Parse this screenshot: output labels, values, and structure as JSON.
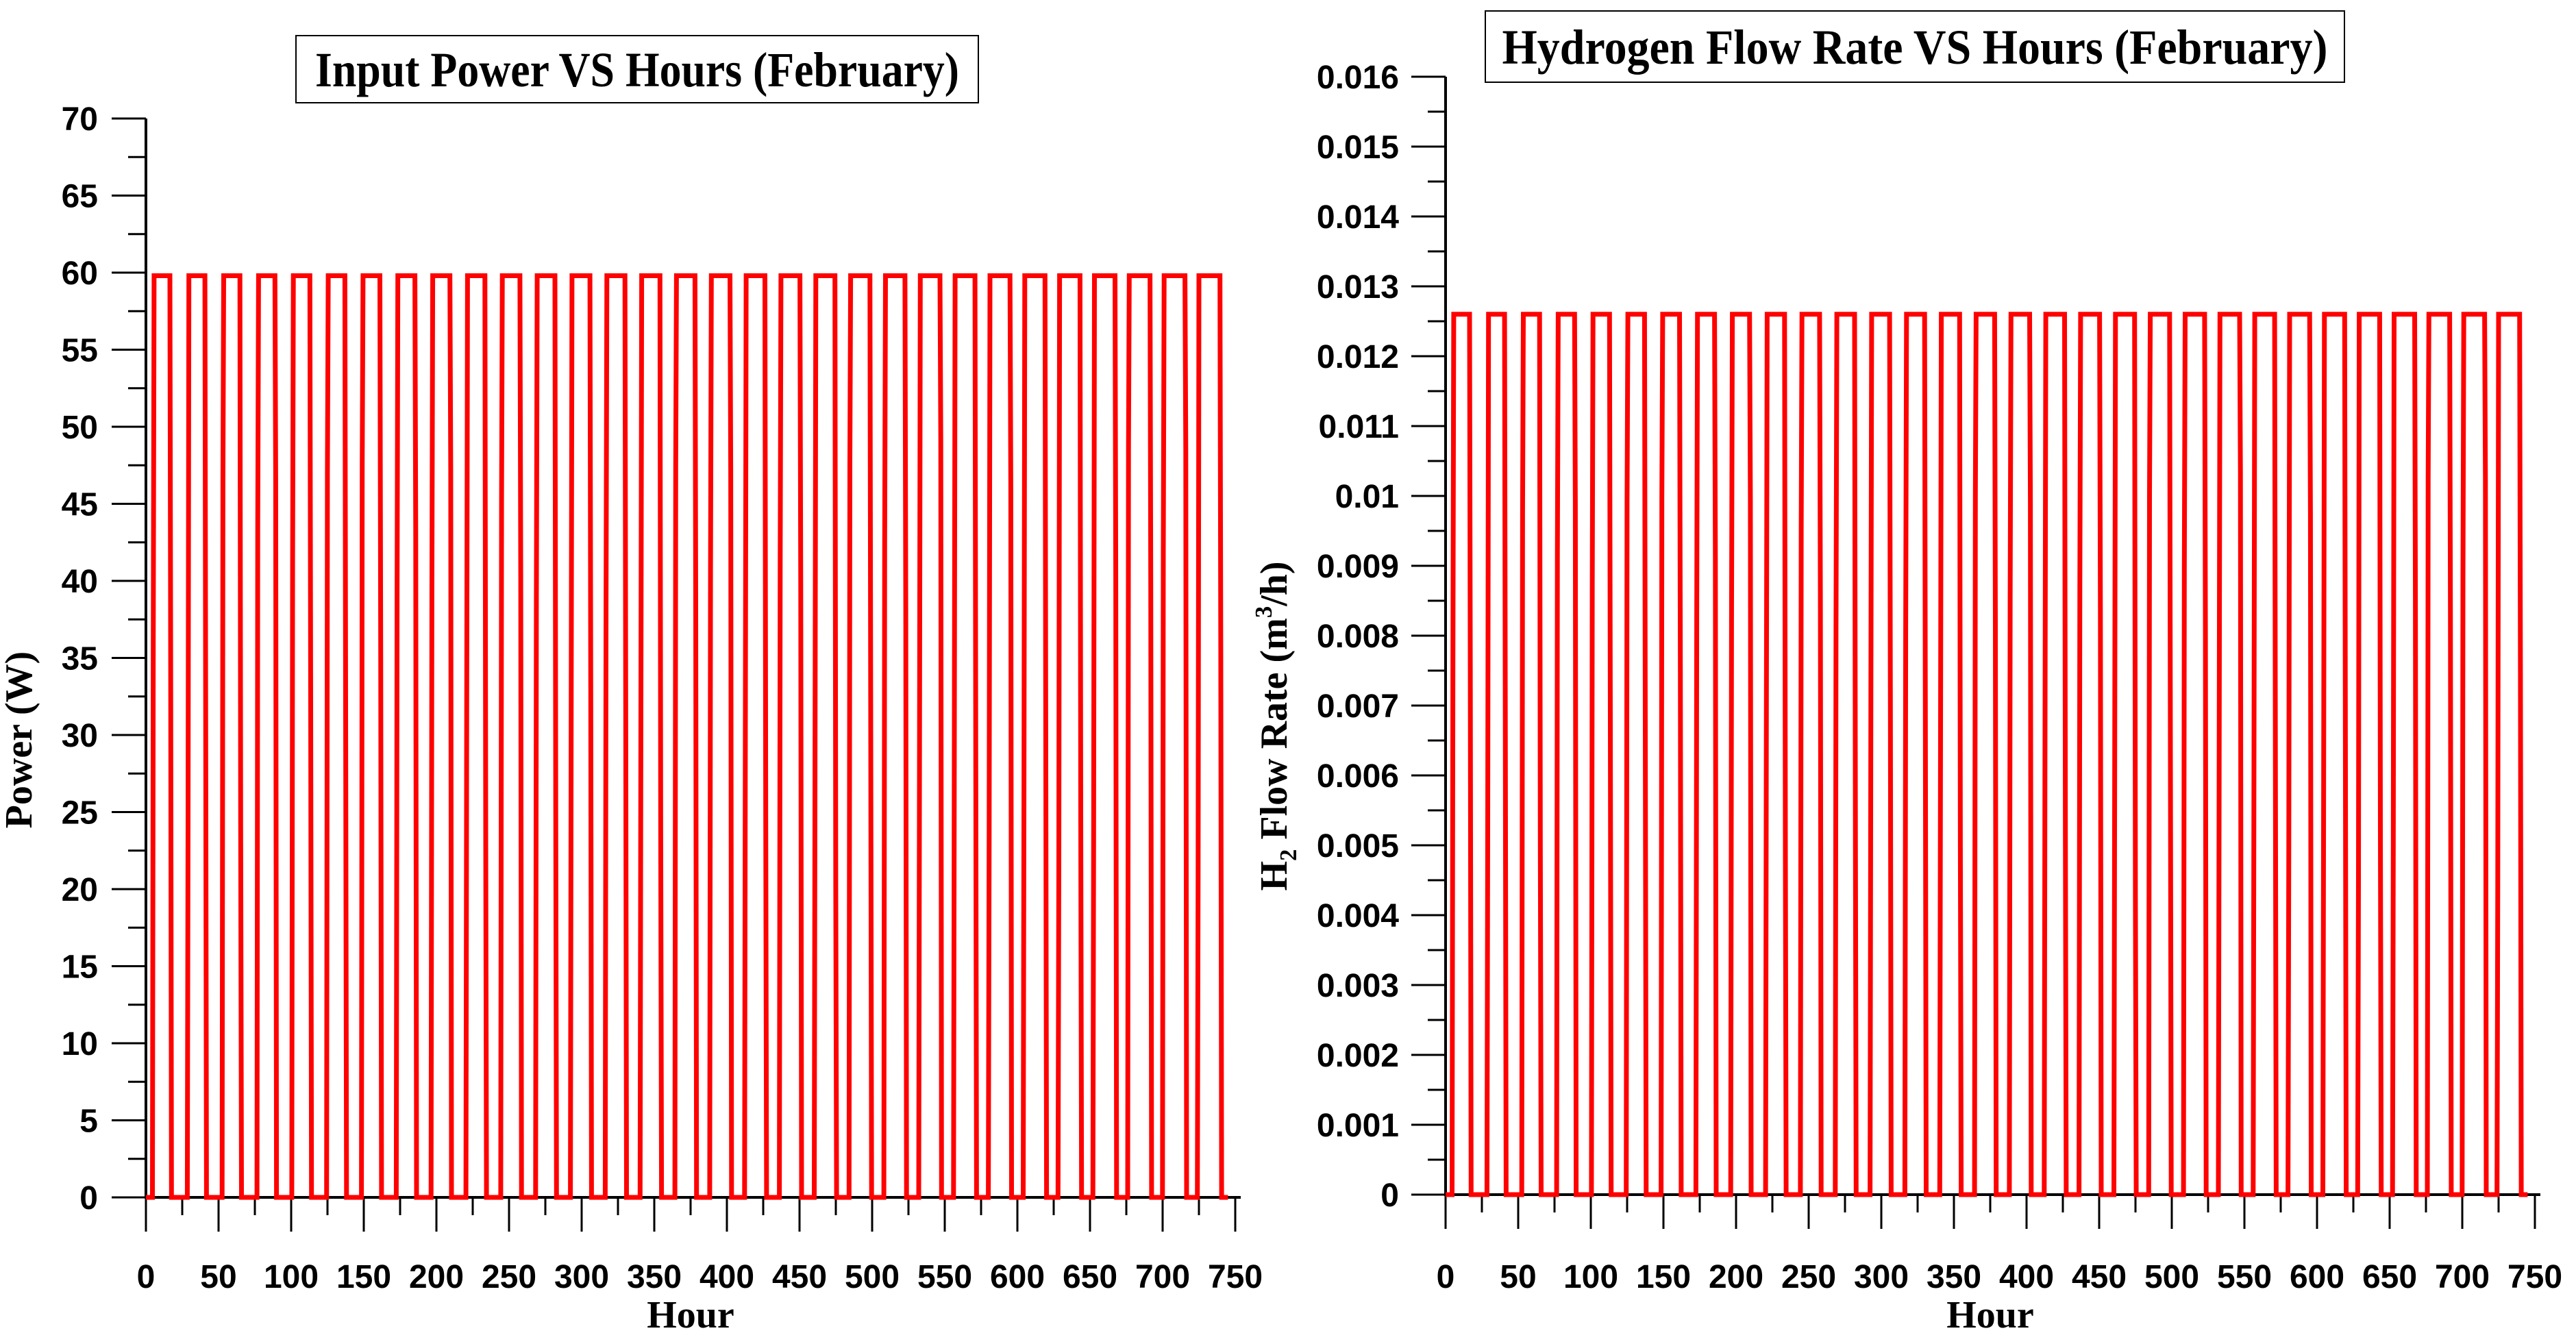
{
  "page": {
    "background": "#ffffff",
    "axis_color": "#000000",
    "text_color": "#000000"
  },
  "charts": [
    {
      "id": "input-power",
      "title": "Input Power VS Hours (February)",
      "x_label": "Hour",
      "y_label_parts": [
        {
          "text": "Power (W)"
        }
      ],
      "x_ticks": {
        "min": 0,
        "max": 750,
        "major": 50,
        "minor": 25
      },
      "y_ticks": {
        "min": 0,
        "max": 70,
        "major": 5,
        "minor": 2.5,
        "format": "integer"
      },
      "series": {
        "name": "input-power-line",
        "color": "#FF0000",
        "high": 59.8,
        "low": 0
      }
    },
    {
      "id": "hydrogen-flow-rate",
      "title": "Hydrogen Flow Rate VS Hours (February)",
      "x_label": "Hour",
      "y_label_parts": [
        {
          "text": "H"
        },
        {
          "text": "2",
          "script": "sub"
        },
        {
          "text": " Flow Rate (m"
        },
        {
          "text": "3",
          "script": "sup"
        },
        {
          "text": "/h)"
        }
      ],
      "x_ticks": {
        "min": 0,
        "max": 750,
        "major": 50,
        "minor": 25
      },
      "y_ticks": {
        "min": 0,
        "max": 0.016,
        "major": 0.001,
        "minor": 0.0005,
        "format": "trim"
      },
      "series": {
        "name": "hydrogen-flow-line",
        "color": "#FF0000",
        "high": 0.0126,
        "low": 0
      }
    }
  ],
  "chart_data": [
    {
      "type": "line",
      "title": "Input Power VS Hours (February)",
      "xlabel": "Hour",
      "ylabel": "Power (W)",
      "xlim": [
        0,
        750
      ],
      "ylim": [
        0,
        70
      ],
      "x_major_tick": 50,
      "x_minor_tick": 25,
      "y_major_tick": 5,
      "y_minor_tick": 2.5,
      "grid": false,
      "legend": "none",
      "line_color": "#FF0000",
      "waveform": {
        "kind": "daily_square_pulse",
        "low": 0,
        "high": 59.8,
        "period_hours": 24,
        "first_rise_hour": 4.5,
        "first_fall_hour": 16.5,
        "rise_drift_per_day": -0.02,
        "fall_drift_per_day": 0.1,
        "days": 31,
        "transition_hours": 1.1,
        "data_end_hour": 745
      }
    },
    {
      "type": "line",
      "title": "Hydrogen Flow Rate VS Hours (February)",
      "xlabel": "Hour",
      "ylabel": "H2 Flow Rate (m3/h)",
      "xlim": [
        0,
        750
      ],
      "ylim": [
        0,
        0.016
      ],
      "x_major_tick": 50,
      "x_minor_tick": 25,
      "y_major_tick": 0.001,
      "y_minor_tick": 0.0005,
      "grid": false,
      "legend": "none",
      "line_color": "#FF0000",
      "waveform": {
        "kind": "daily_square_pulse",
        "low": 0,
        "high": 0.0126,
        "period_hours": 24,
        "first_rise_hour": 4.5,
        "first_fall_hour": 16.5,
        "rise_drift_per_day": -0.02,
        "fall_drift_per_day": 0.1,
        "days": 31,
        "transition_hours": 1.1,
        "data_end_hour": 745
      }
    }
  ]
}
